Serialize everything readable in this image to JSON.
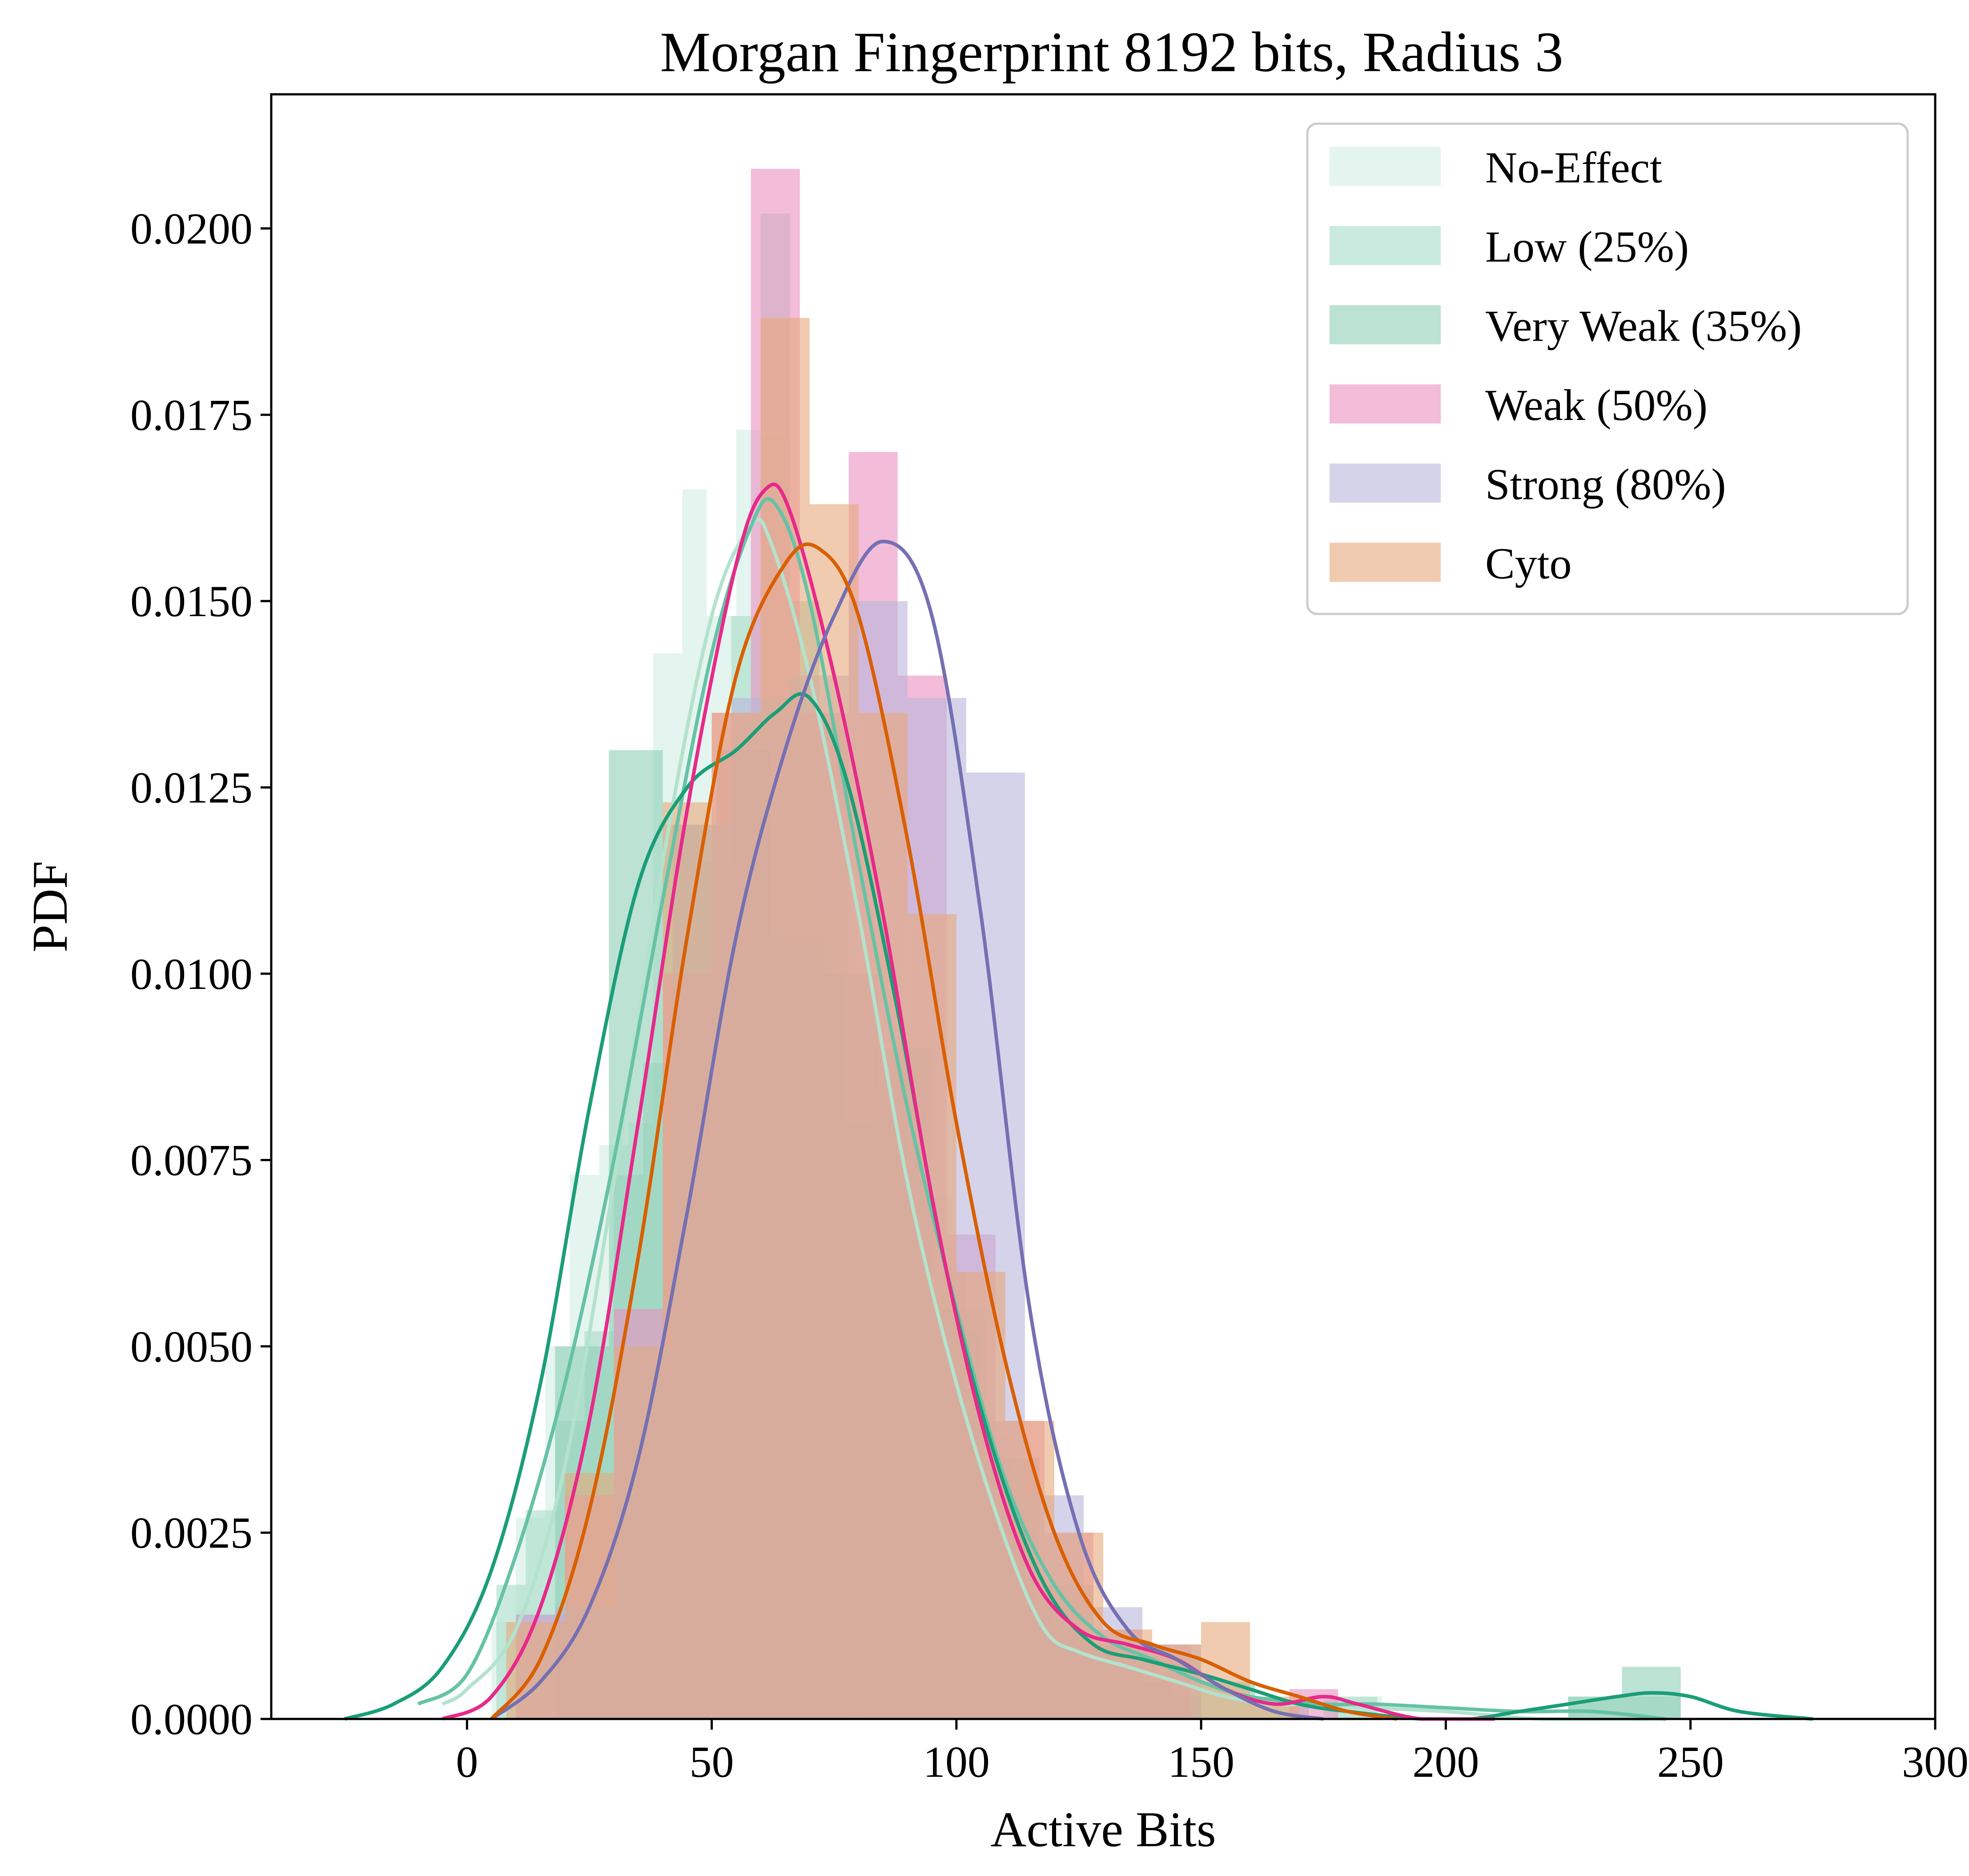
{
  "chart_data": {
    "type": "histogram-kde",
    "title": "Morgan Fingerprint 8192 bits, Radius 3",
    "xlabel": "Active Bits",
    "ylabel": "PDF",
    "xlim": [
      -40,
      300
    ],
    "ylim": [
      0,
      0.0218
    ],
    "xticks": [
      0,
      50,
      100,
      150,
      200,
      250,
      300
    ],
    "xtick_labels": [
      "0",
      "50",
      "100",
      "150",
      "200",
      "250",
      "300"
    ],
    "yticks": [
      0,
      0.0025,
      0.005,
      0.0075,
      0.01,
      0.0125,
      0.015,
      0.0175,
      0.02
    ],
    "ytick_labels": [
      "0.0000",
      "0.0025",
      "0.0050",
      "0.0075",
      "0.0100",
      "0.0125",
      "0.0150",
      "0.0175",
      "0.0200"
    ],
    "grid": false,
    "legend_position": "top-right",
    "series": [
      {
        "name": "No-Effect",
        "bar_color": "#d2ede3",
        "line_color": "#b3e2cd",
        "bins": [
          [
            5,
            10,
            0.0013
          ],
          [
            10,
            16,
            0.0027
          ],
          [
            16,
            21,
            0.005
          ],
          [
            21,
            27,
            0.0073
          ],
          [
            27,
            33,
            0.0077
          ],
          [
            33,
            38,
            0.008
          ],
          [
            38,
            44,
            0.0143
          ],
          [
            44,
            49,
            0.0165
          ],
          [
            49,
            55,
            0.0148
          ],
          [
            55,
            60,
            0.0173
          ],
          [
            60,
            66,
            0.0172
          ],
          [
            66,
            72,
            0.015
          ],
          [
            72,
            77,
            0.0108
          ],
          [
            77,
            83,
            0.008
          ],
          [
            83,
            88,
            0.009
          ],
          [
            88,
            94,
            0.0092
          ],
          [
            94,
            99,
            0.007
          ],
          [
            99,
            105,
            0.0052
          ],
          [
            105,
            111,
            0.0038
          ],
          [
            111,
            116,
            0.0025
          ],
          [
            116,
            122,
            0.0015
          ],
          [
            122,
            127,
            0.0012
          ],
          [
            127,
            133,
            0.001
          ],
          [
            133,
            138,
            0.0007
          ],
          [
            138,
            144,
            0.0005
          ],
          [
            144,
            150,
            0.0003
          ],
          [
            177,
            187,
            0.0003
          ]
        ],
        "kde": [
          [
            -5,
            0.0002
          ],
          [
            0,
            0.0004
          ],
          [
            10,
            0.0012
          ],
          [
            20,
            0.0034
          ],
          [
            30,
            0.0072
          ],
          [
            40,
            0.0115
          ],
          [
            50,
            0.0148
          ],
          [
            58,
            0.016
          ],
          [
            62,
            0.0158
          ],
          [
            70,
            0.014
          ],
          [
            80,
            0.0108
          ],
          [
            90,
            0.0072
          ],
          [
            100,
            0.0045
          ],
          [
            110,
            0.0024
          ],
          [
            118,
            0.0012
          ],
          [
            125,
            0.0009
          ],
          [
            135,
            0.0007
          ],
          [
            145,
            0.0005
          ],
          [
            155,
            0.0003
          ],
          [
            165,
            0.0002
          ],
          [
            175,
            0.0002
          ],
          [
            185,
            0.00015
          ],
          [
            200,
            0.0001
          ],
          [
            220,
            0.0
          ],
          [
            245,
            0.0
          ]
        ]
      },
      {
        "name": "Low (25%)",
        "bar_color": "#a8dcc9",
        "line_color": "#66c2a5",
        "bins": [
          [
            6,
            12,
            0.0018
          ],
          [
            12,
            18,
            0.0028
          ],
          [
            18,
            24,
            0.004
          ],
          [
            24,
            30,
            0.0052
          ],
          [
            30,
            36,
            0.0073
          ],
          [
            36,
            42,
            0.0088
          ],
          [
            42,
            48,
            0.012
          ],
          [
            48,
            54,
            0.0115
          ],
          [
            54,
            60,
            0.0148
          ],
          [
            60,
            66,
            0.0202
          ],
          [
            66,
            72,
            0.015
          ],
          [
            72,
            78,
            0.0133
          ],
          [
            78,
            84,
            0.01
          ],
          [
            84,
            90,
            0.0085
          ],
          [
            90,
            96,
            0.007
          ],
          [
            96,
            102,
            0.006
          ],
          [
            102,
            108,
            0.004
          ],
          [
            108,
            114,
            0.0028
          ],
          [
            114,
            120,
            0.0018
          ],
          [
            120,
            126,
            0.0012
          ],
          [
            126,
            132,
            0.001
          ],
          [
            132,
            138,
            0.0007
          ],
          [
            138,
            144,
            0.0005
          ],
          [
            144,
            150,
            0.0003
          ],
          [
            175,
            186,
            0.0003
          ],
          [
            225,
            248,
            0.0003
          ]
        ],
        "kde": [
          [
            -10,
            0.0002
          ],
          [
            0,
            0.0006
          ],
          [
            10,
            0.0022
          ],
          [
            20,
            0.0045
          ],
          [
            30,
            0.0075
          ],
          [
            40,
            0.011
          ],
          [
            50,
            0.0143
          ],
          [
            58,
            0.016
          ],
          [
            63,
            0.0163
          ],
          [
            70,
            0.015
          ],
          [
            80,
            0.0115
          ],
          [
            90,
            0.0082
          ],
          [
            100,
            0.0055
          ],
          [
            110,
            0.0032
          ],
          [
            120,
            0.0018
          ],
          [
            130,
            0.0011
          ],
          [
            140,
            0.0008
          ],
          [
            150,
            0.0005
          ],
          [
            160,
            0.0003
          ],
          [
            175,
            0.0002
          ],
          [
            185,
            0.0002
          ],
          [
            200,
            0.00015
          ],
          [
            215,
            0.0001
          ],
          [
            230,
            0.0001
          ],
          [
            245,
            0.0
          ]
        ]
      },
      {
        "name": "Very Weak (35%)",
        "bar_color": "#8ecfb6",
        "line_color": "#1b9e77",
        "bins": [
          [
            18,
            29,
            0.005
          ],
          [
            29,
            40,
            0.013
          ],
          [
            40,
            51,
            0.012
          ],
          [
            51,
            62,
            0.013
          ],
          [
            62,
            73,
            0.0105
          ],
          [
            73,
            84,
            0.01
          ],
          [
            84,
            95,
            0.009
          ],
          [
            95,
            106,
            0.0055
          ],
          [
            106,
            117,
            0.0035
          ],
          [
            117,
            128,
            0.0018
          ],
          [
            128,
            139,
            0.001
          ],
          [
            139,
            150,
            0.0008
          ],
          [
            150,
            161,
            0.0005
          ],
          [
            161,
            172,
            0.0002
          ],
          [
            225,
            236,
            0.0003
          ],
          [
            236,
            248,
            0.0007
          ]
        ],
        "kde": [
          [
            -25,
            0.0
          ],
          [
            -15,
            0.0002
          ],
          [
            -5,
            0.0007
          ],
          [
            5,
            0.002
          ],
          [
            15,
            0.0045
          ],
          [
            25,
            0.0082
          ],
          [
            35,
            0.0112
          ],
          [
            45,
            0.0125
          ],
          [
            55,
            0.013
          ],
          [
            63,
            0.0135
          ],
          [
            70,
            0.0137
          ],
          [
            78,
            0.0125
          ],
          [
            88,
            0.0095
          ],
          [
            98,
            0.006
          ],
          [
            108,
            0.0035
          ],
          [
            118,
            0.0018
          ],
          [
            128,
            0.001
          ],
          [
            138,
            0.0008
          ],
          [
            150,
            0.0006
          ],
          [
            160,
            0.0004
          ],
          [
            170,
            0.0002
          ],
          [
            180,
            0.0001
          ],
          [
            195,
            0.0
          ],
          [
            205,
            0.0
          ],
          [
            215,
            0.0001
          ],
          [
            225,
            0.0002
          ],
          [
            235,
            0.0003
          ],
          [
            242,
            0.00035
          ],
          [
            250,
            0.0003
          ],
          [
            260,
            0.0001
          ],
          [
            275,
            0.0
          ]
        ]
      },
      {
        "name": "Weak (50%)",
        "bar_color": "#eb8fbf",
        "line_color": "#e7298a",
        "bins": [
          [
            10,
            20,
            0.0014
          ],
          [
            20,
            30,
            0.003
          ],
          [
            30,
            40,
            0.0055
          ],
          [
            40,
            50,
            0.01
          ],
          [
            50,
            58,
            0.0135
          ],
          [
            58,
            68,
            0.0208
          ],
          [
            68,
            78,
            0.0135
          ],
          [
            78,
            88,
            0.017
          ],
          [
            88,
            98,
            0.014
          ],
          [
            98,
            108,
            0.0065
          ],
          [
            108,
            118,
            0.004
          ],
          [
            118,
            128,
            0.0025
          ],
          [
            128,
            138,
            0.0012
          ],
          [
            138,
            148,
            0.001
          ],
          [
            168,
            178,
            0.0004
          ]
        ],
        "kde": [
          [
            -5,
            0.0
          ],
          [
            5,
            0.0003
          ],
          [
            15,
            0.0015
          ],
          [
            25,
            0.004
          ],
          [
            35,
            0.008
          ],
          [
            45,
            0.0122
          ],
          [
            55,
            0.0155
          ],
          [
            61,
            0.0165
          ],
          [
            66,
            0.0162
          ],
          [
            75,
            0.014
          ],
          [
            85,
            0.0108
          ],
          [
            95,
            0.007
          ],
          [
            105,
            0.004
          ],
          [
            115,
            0.002
          ],
          [
            125,
            0.0012
          ],
          [
            135,
            0.001
          ],
          [
            145,
            0.0008
          ],
          [
            155,
            0.0004
          ],
          [
            165,
            0.0002
          ],
          [
            175,
            0.0003
          ],
          [
            182,
            0.0002
          ],
          [
            195,
            0.0
          ],
          [
            210,
            0.0
          ]
        ]
      },
      {
        "name": "Strong (80%)",
        "bar_color": "#b9b6da",
        "line_color": "#7570b3",
        "bins": [
          [
            10,
            18,
            0.0014
          ],
          [
            18,
            30,
            0.0015
          ],
          [
            30,
            42,
            0.005
          ],
          [
            42,
            54,
            0.012
          ],
          [
            54,
            66,
            0.0137
          ],
          [
            66,
            78,
            0.014
          ],
          [
            78,
            90,
            0.015
          ],
          [
            90,
            102,
            0.0137
          ],
          [
            102,
            114,
            0.0127
          ],
          [
            114,
            126,
            0.003
          ],
          [
            126,
            138,
            0.0015
          ],
          [
            138,
            150,
            0.001
          ]
        ],
        "kde": [
          [
            5,
            0.0
          ],
          [
            15,
            0.0005
          ],
          [
            25,
            0.0015
          ],
          [
            35,
            0.0035
          ],
          [
            45,
            0.0068
          ],
          [
            55,
            0.0105
          ],
          [
            65,
            0.013
          ],
          [
            75,
            0.0148
          ],
          [
            85,
            0.0158
          ],
          [
            95,
            0.0148
          ],
          [
            105,
            0.0108
          ],
          [
            115,
            0.0055
          ],
          [
            125,
            0.0025
          ],
          [
            135,
            0.0012
          ],
          [
            145,
            0.0008
          ],
          [
            155,
            0.0004
          ],
          [
            165,
            0.0001
          ],
          [
            175,
            0.0
          ]
        ]
      },
      {
        "name": "Cyto",
        "bar_color": "#e8a979",
        "line_color": "#d95f02",
        "bins": [
          [
            8,
            20,
            0.0013
          ],
          [
            20,
            30,
            0.0033
          ],
          [
            30,
            40,
            0.005
          ],
          [
            40,
            50,
            0.0123
          ],
          [
            50,
            60,
            0.0135
          ],
          [
            60,
            70,
            0.0188
          ],
          [
            70,
            80,
            0.0163
          ],
          [
            80,
            90,
            0.0135
          ],
          [
            90,
            100,
            0.0108
          ],
          [
            100,
            110,
            0.006
          ],
          [
            110,
            120,
            0.004
          ],
          [
            120,
            130,
            0.0025
          ],
          [
            130,
            140,
            0.0012
          ],
          [
            140,
            150,
            0.001
          ],
          [
            150,
            160,
            0.0013
          ],
          [
            160,
            170,
            0.0003
          ]
        ],
        "kde": [
          [
            5,
            0.0
          ],
          [
            15,
            0.0008
          ],
          [
            25,
            0.0028
          ],
          [
            35,
            0.0062
          ],
          [
            45,
            0.0105
          ],
          [
            55,
            0.014
          ],
          [
            65,
            0.0155
          ],
          [
            72,
            0.0157
          ],
          [
            80,
            0.0148
          ],
          [
            90,
            0.0118
          ],
          [
            100,
            0.008
          ],
          [
            110,
            0.0048
          ],
          [
            120,
            0.0025
          ],
          [
            130,
            0.0013
          ],
          [
            140,
            0.001
          ],
          [
            150,
            0.0008
          ],
          [
            160,
            0.0005
          ],
          [
            170,
            0.0003
          ],
          [
            180,
            0.0001
          ],
          [
            190,
            0.0
          ]
        ]
      }
    ]
  }
}
